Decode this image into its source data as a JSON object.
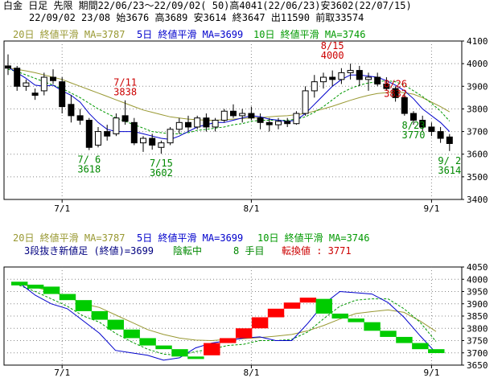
{
  "header": {
    "line1": "白金 日足 先限 期間22/06/23～22/09/02( 50)高4041(22/06/23)安3602(22/07/15)",
    "line2": "22/09/02 23/08 始3676 高3689 安3614 終3647 出11590 前取33574"
  },
  "top_legend": {
    "ma20": "20日 終値平滑 MA=3787",
    "ma5": "5日 終値平滑 MA=3699",
    "ma10": "10日 終値平滑 MA=3746"
  },
  "bottom_legend": {
    "ma20": "20日 終値平滑 MA=3787",
    "ma5": "5日 終値平滑 MA=3699",
    "ma10": "10日 終値平滑 MA=3746",
    "info_a": "3段抜き新値足 (終値)=3699",
    "info_b": "陰転中",
    "info_c": "8 手目",
    "info_d": "転換値 : 3771"
  },
  "colors": {
    "up": "#ffffff",
    "down": "#000000",
    "ma20": "#999933",
    "ma5": "#0000cc",
    "ma10": "#009900",
    "red": "#cc0000",
    "green": "#008800",
    "kagi_up": "#ff0000",
    "kagi_down": "#00cc00"
  },
  "chart_data": [
    {
      "type": "candlestick",
      "x_ticks": [
        "7/1",
        "8/1",
        "9/1"
      ],
      "ylim": [
        3400,
        4100
      ],
      "y_ticks": [
        3400,
        3500,
        3600,
        3700,
        3800,
        3900,
        4000,
        4100
      ],
      "candles": [
        {
          "o": 3990,
          "h": 4041,
          "l": 3950,
          "c": 3980
        },
        {
          "o": 3980,
          "h": 3990,
          "l": 3880,
          "c": 3900
        },
        {
          "o": 3900,
          "h": 3930,
          "l": 3880,
          "c": 3915
        },
        {
          "o": 3870,
          "h": 3890,
          "l": 3840,
          "c": 3860
        },
        {
          "o": 3880,
          "h": 3960,
          "l": 3860,
          "c": 3940
        },
        {
          "o": 3940,
          "h": 3975,
          "l": 3910,
          "c": 3925
        },
        {
          "o": 3920,
          "h": 3940,
          "l": 3780,
          "c": 3810
        },
        {
          "o": 3820,
          "h": 3860,
          "l": 3740,
          "c": 3770
        },
        {
          "o": 3770,
          "h": 3800,
          "l": 3730,
          "c": 3750
        },
        {
          "o": 3750,
          "h": 3760,
          "l": 3618,
          "c": 3630
        },
        {
          "o": 3640,
          "h": 3720,
          "l": 3630,
          "c": 3700
        },
        {
          "o": 3700,
          "h": 3730,
          "l": 3660,
          "c": 3680
        },
        {
          "o": 3690,
          "h": 3780,
          "l": 3680,
          "c": 3760
        },
        {
          "o": 3770,
          "h": 3838,
          "l": 3730,
          "c": 3745
        },
        {
          "o": 3740,
          "h": 3760,
          "l": 3640,
          "c": 3650
        },
        {
          "o": 3650,
          "h": 3680,
          "l": 3610,
          "c": 3670
        },
        {
          "o": 3670,
          "h": 3690,
          "l": 3620,
          "c": 3640
        },
        {
          "o": 3630,
          "h": 3660,
          "l": 3602,
          "c": 3650
        },
        {
          "o": 3650,
          "h": 3720,
          "l": 3640,
          "c": 3710
        },
        {
          "o": 3710,
          "h": 3760,
          "l": 3690,
          "c": 3740
        },
        {
          "o": 3740,
          "h": 3770,
          "l": 3700,
          "c": 3720
        },
        {
          "o": 3720,
          "h": 3770,
          "l": 3710,
          "c": 3760
        },
        {
          "o": 3760,
          "h": 3780,
          "l": 3700,
          "c": 3720
        },
        {
          "o": 3720,
          "h": 3760,
          "l": 3700,
          "c": 3750
        },
        {
          "o": 3750,
          "h": 3800,
          "l": 3740,
          "c": 3790
        },
        {
          "o": 3790,
          "h": 3820,
          "l": 3760,
          "c": 3770
        },
        {
          "o": 3770,
          "h": 3800,
          "l": 3740,
          "c": 3780
        },
        {
          "o": 3780,
          "h": 3810,
          "l": 3750,
          "c": 3760
        },
        {
          "o": 3760,
          "h": 3780,
          "l": 3710,
          "c": 3740
        },
        {
          "o": 3740,
          "h": 3760,
          "l": 3700,
          "c": 3730
        },
        {
          "o": 3730,
          "h": 3760,
          "l": 3710,
          "c": 3745
        },
        {
          "o": 3745,
          "h": 3760,
          "l": 3720,
          "c": 3735
        },
        {
          "o": 3735,
          "h": 3790,
          "l": 3730,
          "c": 3780
        },
        {
          "o": 3780,
          "h": 3900,
          "l": 3770,
          "c": 3880
        },
        {
          "o": 3880,
          "h": 3950,
          "l": 3850,
          "c": 3920
        },
        {
          "o": 3920,
          "h": 3960,
          "l": 3890,
          "c": 3940
        },
        {
          "o": 3940,
          "h": 3970,
          "l": 3900,
          "c": 3930
        },
        {
          "o": 3930,
          "h": 3980,
          "l": 3910,
          "c": 3960
        },
        {
          "o": 3960,
          "h": 4000,
          "l": 3930,
          "c": 3970
        },
        {
          "o": 3970,
          "h": 3990,
          "l": 3900,
          "c": 3930
        },
        {
          "o": 3930,
          "h": 3960,
          "l": 3880,
          "c": 3940
        },
        {
          "o": 3940,
          "h": 3960,
          "l": 3900,
          "c": 3910
        },
        {
          "o": 3910,
          "h": 3940,
          "l": 3880,
          "c": 3890
        },
        {
          "o": 3890,
          "h": 3900,
          "l": 3832,
          "c": 3850
        },
        {
          "o": 3850,
          "h": 3870,
          "l": 3770,
          "c": 3780
        },
        {
          "o": 3780,
          "h": 3790,
          "l": 3730,
          "c": 3750
        },
        {
          "o": 3750,
          "h": 3770,
          "l": 3700,
          "c": 3720
        },
        {
          "o": 3720,
          "h": 3740,
          "l": 3680,
          "c": 3700
        },
        {
          "o": 3700,
          "h": 3720,
          "l": 3650,
          "c": 3670
        },
        {
          "o": 3676,
          "h": 3689,
          "l": 3614,
          "c": 3647
        }
      ],
      "ma5": [
        3985,
        3960,
        3935,
        3905,
        3900,
        3905,
        3880,
        3860,
        3830,
        3780,
        3740,
        3710,
        3700,
        3700,
        3700,
        3690,
        3680,
        3670,
        3665,
        3680,
        3700,
        3720,
        3730,
        3740,
        3740,
        3750,
        3760,
        3770,
        3765,
        3755,
        3750,
        3745,
        3750,
        3780,
        3820,
        3860,
        3900,
        3930,
        3950,
        3950,
        3945,
        3940,
        3925,
        3905,
        3880,
        3845,
        3800,
        3770,
        3740,
        3700
      ],
      "ma10": [
        3975,
        3965,
        3950,
        3935,
        3920,
        3905,
        3890,
        3870,
        3850,
        3825,
        3800,
        3780,
        3760,
        3745,
        3730,
        3715,
        3700,
        3695,
        3690,
        3690,
        3695,
        3705,
        3710,
        3715,
        3720,
        3730,
        3735,
        3745,
        3750,
        3750,
        3750,
        3750,
        3755,
        3765,
        3785,
        3810,
        3840,
        3870,
        3890,
        3905,
        3915,
        3920,
        3925,
        3920,
        3905,
        3880,
        3855,
        3825,
        3790,
        3746
      ],
      "ma20": [
        3980,
        3975,
        3968,
        3960,
        3950,
        3940,
        3930,
        3915,
        3900,
        3885,
        3870,
        3855,
        3840,
        3825,
        3810,
        3795,
        3785,
        3775,
        3765,
        3760,
        3755,
        3752,
        3750,
        3750,
        3752,
        3755,
        3758,
        3760,
        3762,
        3765,
        3768,
        3770,
        3775,
        3780,
        3790,
        3800,
        3812,
        3825,
        3838,
        3850,
        3860,
        3868,
        3872,
        3875,
        3872,
        3865,
        3850,
        3830,
        3810,
        3787
      ],
      "annotations": [
        {
          "text": "7/11",
          "value": "3838",
          "color": "red"
        },
        {
          "text": "7/ 6",
          "value": "3618",
          "color": "green"
        },
        {
          "text": "7/15",
          "value": "3602",
          "color": "green"
        },
        {
          "text": "8/15",
          "value": "4000",
          "color": "red"
        },
        {
          "text": "8/26",
          "value": "3832",
          "color": "red"
        },
        {
          "text": "8/23",
          "value": "3770",
          "color": "green"
        },
        {
          "text": "9/ 2",
          "value": "3614",
          "color": "green"
        }
      ]
    },
    {
      "type": "new-price-bars",
      "x_ticks": [
        "7/1",
        "8/1",
        "9/1"
      ],
      "ylim": [
        3650,
        4050
      ],
      "y_ticks": [
        3650,
        3700,
        3750,
        3800,
        3850,
        3900,
        3950,
        4000,
        4050
      ],
      "bricks": [
        {
          "dir": "down",
          "hi": 3990,
          "lo": 3975
        },
        {
          "dir": "down",
          "hi": 3978,
          "lo": 3962
        },
        {
          "dir": "down",
          "hi": 3970,
          "lo": 3940
        },
        {
          "dir": "down",
          "hi": 3940,
          "lo": 3915
        },
        {
          "dir": "down",
          "hi": 3915,
          "lo": 3870
        },
        {
          "dir": "down",
          "hi": 3870,
          "lo": 3835
        },
        {
          "dir": "down",
          "hi": 3835,
          "lo": 3795
        },
        {
          "dir": "down",
          "hi": 3795,
          "lo": 3760
        },
        {
          "dir": "down",
          "hi": 3760,
          "lo": 3730
        },
        {
          "dir": "down",
          "hi": 3730,
          "lo": 3715
        },
        {
          "dir": "down",
          "hi": 3715,
          "lo": 3685
        },
        {
          "dir": "down",
          "hi": 3685,
          "lo": 3675
        },
        {
          "dir": "up",
          "hi": 3740,
          "lo": 3690
        },
        {
          "dir": "up",
          "hi": 3760,
          "lo": 3740
        },
        {
          "dir": "up",
          "hi": 3800,
          "lo": 3760
        },
        {
          "dir": "up",
          "hi": 3845,
          "lo": 3800
        },
        {
          "dir": "up",
          "hi": 3880,
          "lo": 3845
        },
        {
          "dir": "up",
          "hi": 3905,
          "lo": 3880
        },
        {
          "dir": "up",
          "hi": 3925,
          "lo": 3905
        },
        {
          "dir": "down",
          "hi": 3920,
          "lo": 3860
        },
        {
          "dir": "down",
          "hi": 3860,
          "lo": 3840
        },
        {
          "dir": "down",
          "hi": 3840,
          "lo": 3825
        },
        {
          "dir": "down",
          "hi": 3825,
          "lo": 3790
        },
        {
          "dir": "down",
          "hi": 3790,
          "lo": 3765
        },
        {
          "dir": "down",
          "hi": 3765,
          "lo": 3740
        },
        {
          "dir": "down",
          "hi": 3740,
          "lo": 3715
        },
        {
          "dir": "down",
          "hi": 3715,
          "lo": 3699
        }
      ]
    }
  ]
}
